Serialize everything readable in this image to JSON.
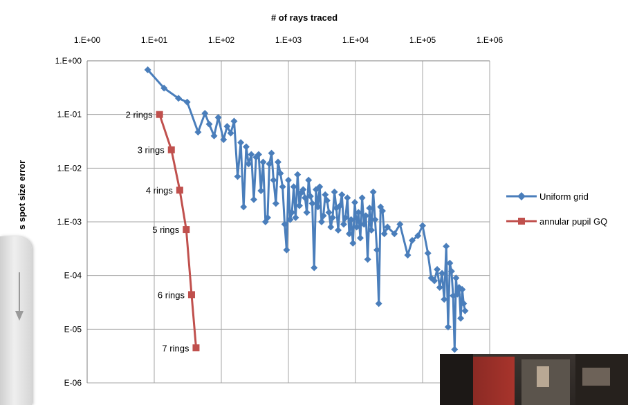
{
  "chart_data": {
    "type": "scatter",
    "title": "",
    "xlabel": "# of rays traced",
    "ylabel": "s spot size error",
    "xscale": "log",
    "yscale": "log",
    "xlim": [
      1,
      1000000
    ],
    "ylim": [
      1e-06,
      1
    ],
    "x_ticks": [
      {
        "value": 1,
        "label": "1.E+00"
      },
      {
        "value": 10,
        "label": "1.E+01"
      },
      {
        "value": 100,
        "label": "1.E+02"
      },
      {
        "value": 1000,
        "label": "1.E+03"
      },
      {
        "value": 10000,
        "label": "1.E+04"
      },
      {
        "value": 100000,
        "label": "1.E+05"
      },
      {
        "value": 1000000,
        "label": "1.E+06"
      }
    ],
    "y_ticks": [
      {
        "value": 1,
        "label": "1.E+00"
      },
      {
        "value": 0.1,
        "label": "1.E-01"
      },
      {
        "value": 0.01,
        "label": "1.E-02"
      },
      {
        "value": 0.001,
        "label": "1.E-03"
      },
      {
        "value": 0.0001,
        "label": "E-04"
      },
      {
        "value": 1e-05,
        "label": "E-05"
      },
      {
        "value": 1e-06,
        "label": "E-06"
      }
    ],
    "grid": true,
    "x_axis_position": "top",
    "legend_placement": "right",
    "series": [
      {
        "name": "Uniform grid",
        "color": "#4a7ebb",
        "marker": "diamond",
        "points": [
          [
            8,
            0.68
          ],
          [
            14,
            0.31
          ],
          [
            23,
            0.2
          ],
          [
            31,
            0.17
          ],
          [
            45,
            0.047
          ],
          [
            57,
            0.105
          ],
          [
            66,
            0.066
          ],
          [
            78,
            0.04
          ],
          [
            90,
            0.088
          ],
          [
            108,
            0.034
          ],
          [
            122,
            0.06
          ],
          [
            138,
            0.045
          ],
          [
            155,
            0.075
          ],
          [
            175,
            0.007
          ],
          [
            195,
            0.03
          ],
          [
            215,
            0.0019
          ],
          [
            235,
            0.025
          ],
          [
            255,
            0.012
          ],
          [
            280,
            0.018
          ],
          [
            305,
            0.0026
          ],
          [
            330,
            0.016
          ],
          [
            360,
            0.018
          ],
          [
            390,
            0.0038
          ],
          [
            420,
            0.013
          ],
          [
            455,
            0.001
          ],
          [
            490,
            0.0012
          ],
          [
            520,
            0.012
          ],
          [
            560,
            0.019
          ],
          [
            600,
            0.006
          ],
          [
            650,
            0.0022
          ],
          [
            700,
            0.013
          ],
          [
            760,
            0.008
          ],
          [
            820,
            0.0045
          ],
          [
            880,
            0.0009
          ],
          [
            940,
            0.0003
          ],
          [
            1000,
            0.006
          ],
          [
            1060,
            0.0011
          ],
          [
            1130,
            0.0015
          ],
          [
            1200,
            0.0045
          ],
          [
            1280,
            0.0012
          ],
          [
            1370,
            0.0076
          ],
          [
            1460,
            0.002
          ],
          [
            1560,
            0.0035
          ],
          [
            1660,
            0.004
          ],
          [
            1770,
            0.0028
          ],
          [
            1880,
            0.0015
          ],
          [
            2000,
            0.006
          ],
          [
            2130,
            0.003
          ],
          [
            2270,
            0.0022
          ],
          [
            2420,
            0.00014
          ],
          [
            2580,
            0.004
          ],
          [
            2750,
            0.0019
          ],
          [
            2930,
            0.0045
          ],
          [
            3120,
            0.001
          ],
          [
            3320,
            0.0013
          ],
          [
            3540,
            0.0032
          ],
          [
            3770,
            0.0025
          ],
          [
            4020,
            0.0015
          ],
          [
            4280,
            0.0008
          ],
          [
            4560,
            0.0012
          ],
          [
            4860,
            0.0036
          ],
          [
            5180,
            0.0018
          ],
          [
            5520,
            0.0007
          ],
          [
            5880,
            0.002
          ],
          [
            6260,
            0.0032
          ],
          [
            6670,
            0.0009
          ],
          [
            7110,
            0.0012
          ],
          [
            7570,
            0.0028
          ],
          [
            8070,
            0.0006
          ],
          [
            8600,
            0.0011
          ],
          [
            9160,
            0.0004
          ],
          [
            9760,
            0.0023
          ],
          [
            10400,
            0.0008
          ],
          [
            11080,
            0.0015
          ],
          [
            11800,
            0.0005
          ],
          [
            12570,
            0.0028
          ],
          [
            13390,
            0.0009
          ],
          [
            14270,
            0.0013
          ],
          [
            15200,
            0.0002
          ],
          [
            16200,
            0.0018
          ],
          [
            17250,
            0.0007
          ],
          [
            18380,
            0.0036
          ],
          [
            19580,
            0.0011
          ],
          [
            20860,
            0.0003
          ],
          [
            22230,
            3e-05
          ],
          [
            23680,
            0.0019
          ],
          [
            25230,
            0.0016
          ],
          [
            26880,
            0.0006
          ],
          [
            30000,
            0.0008
          ],
          [
            38000,
            0.0006
          ],
          [
            46000,
            0.0009
          ],
          [
            60000,
            0.00024
          ],
          [
            70000,
            0.00045
          ],
          [
            85000,
            0.00055
          ],
          [
            100000,
            0.00085
          ],
          [
            120000,
            0.00026
          ],
          [
            135000,
            9e-05
          ],
          [
            150000,
            8e-05
          ],
          [
            165000,
            0.00013
          ],
          [
            180000,
            6e-05
          ],
          [
            195000,
            0.00011
          ],
          [
            210000,
            3.6e-05
          ],
          [
            225000,
            0.00035
          ],
          [
            240000,
            1.1e-05
          ],
          [
            255000,
            0.00017
          ],
          [
            270000,
            0.00012
          ],
          [
            285000,
            4.2e-05
          ],
          [
            300000,
            4.2e-06
          ],
          [
            315000,
            9e-05
          ],
          [
            330000,
            4.5e-05
          ],
          [
            350000,
            6e-05
          ],
          [
            370000,
            1.6e-05
          ],
          [
            390000,
            5.5e-05
          ],
          [
            410000,
            3e-05
          ],
          [
            430000,
            2.2e-05
          ]
        ]
      },
      {
        "name": "annular pupil GQ",
        "color": "#c0504d",
        "marker": "square",
        "points": [
          {
            "x": 12,
            "y": 0.1,
            "label": "2 rings"
          },
          {
            "x": 18,
            "y": 0.022,
            "label": "3 rings"
          },
          {
            "x": 24,
            "y": 0.0039,
            "label": "4 rings"
          },
          {
            "x": 30,
            "y": 0.00072,
            "label": "5 rings"
          },
          {
            "x": 36,
            "y": 4.4e-05,
            "label": "6 rings"
          },
          {
            "x": 42,
            "y": 4.5e-06,
            "label": "7 rings"
          }
        ]
      }
    ]
  }
}
